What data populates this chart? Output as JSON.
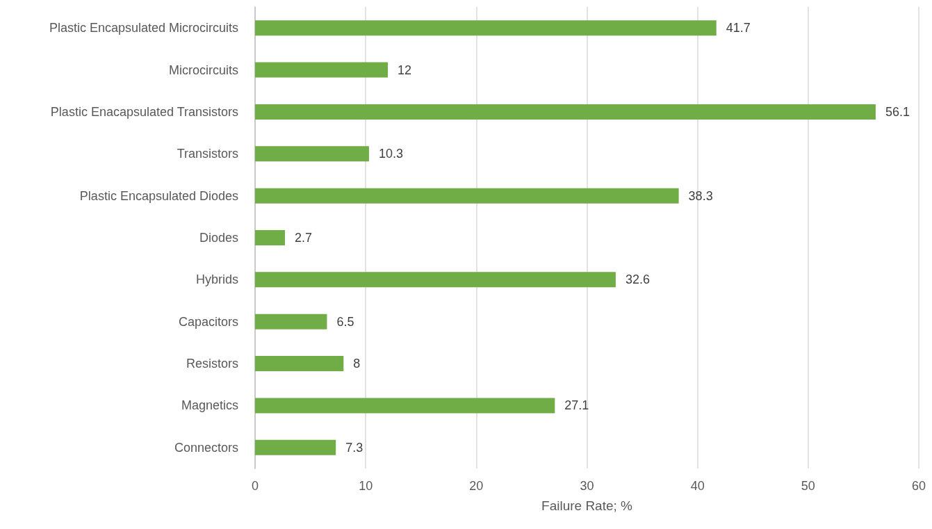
{
  "chart_data": {
    "type": "bar",
    "orientation": "horizontal",
    "xlabel": "Failure Rate; %",
    "categories": [
      "Plastic Encapsulated Microcircuits",
      "Microcircuits",
      "Plastic Enacapsulated Transistors",
      "Transistors",
      "Plastic Encapsulated Diodes",
      "Diodes",
      "Hybrids",
      "Capacitors",
      "Resistors",
      "Magnetics",
      "Connectors"
    ],
    "values": [
      41.7,
      12,
      56.1,
      10.3,
      38.3,
      2.7,
      32.6,
      6.5,
      8,
      27.1,
      7.3
    ],
    "color": "#70ad47",
    "xlim": [
      0,
      60
    ],
    "xticks": [
      0,
      10,
      20,
      30,
      40,
      50,
      60
    ],
    "grid": "x",
    "data_labels": true
  }
}
